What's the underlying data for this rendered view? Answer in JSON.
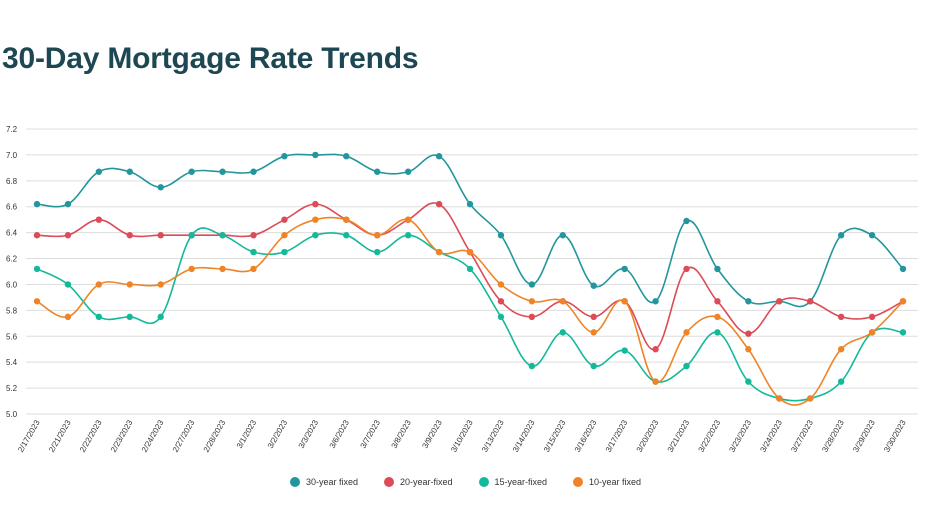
{
  "chart_data": {
    "type": "line",
    "title": "30-Day Mortgage Rate Trends",
    "xlabel": "",
    "ylabel": "",
    "ylim": [
      5.0,
      7.2
    ],
    "yticks": [
      "7.2",
      "7.0",
      "6.8",
      "6.6",
      "6.4",
      "6.2",
      "6.0",
      "5.8",
      "5.6",
      "5.4",
      "5.2",
      "5.0"
    ],
    "grid": true,
    "legend_position": "bottom",
    "categories": [
      "2/17/2023",
      "2/21/2023",
      "2/22/2023",
      "2/23/2023",
      "2/24/2023",
      "2/27/2023",
      "2/28/2023",
      "3/1/2023",
      "3/2/2023",
      "3/3/2023",
      "3/6/2023",
      "3/7/2023",
      "3/8/2023",
      "3/9/2023",
      "3/10/2023",
      "3/13/2023",
      "3/14/2023",
      "3/15/2023",
      "3/16/2023",
      "3/17/2023",
      "3/20/2023",
      "3/21/2023",
      "3/22/2023",
      "3/23/2023",
      "3/24/2023",
      "3/27/2023",
      "3/28/2023",
      "3/29/2023",
      "3/30/2023"
    ],
    "series": [
      {
        "name": "30-year fixed",
        "color": "#22969c",
        "values": [
          6.62,
          6.62,
          6.87,
          6.87,
          6.75,
          6.87,
          6.87,
          6.87,
          6.99,
          7.0,
          6.99,
          6.87,
          6.87,
          6.99,
          6.62,
          6.38,
          6.0,
          6.38,
          5.99,
          6.12,
          5.87,
          6.49,
          6.12,
          5.87,
          5.87,
          5.87,
          6.38,
          6.38,
          6.12
        ]
      },
      {
        "name": "20-year-fixed",
        "color": "#dc4b56",
        "values": [
          6.38,
          6.38,
          6.5,
          6.38,
          6.38,
          6.38,
          6.38,
          6.38,
          6.5,
          6.62,
          6.5,
          6.38,
          6.5,
          6.62,
          6.25,
          5.87,
          5.75,
          5.87,
          5.75,
          5.87,
          5.5,
          6.12,
          5.87,
          5.62,
          5.87,
          5.87,
          5.75,
          5.75,
          5.87
        ]
      },
      {
        "name": "15-year-fixed",
        "color": "#14b99a",
        "values": [
          6.12,
          6.0,
          5.75,
          5.75,
          5.75,
          6.38,
          6.38,
          6.25,
          6.25,
          6.38,
          6.38,
          6.25,
          6.38,
          6.25,
          6.12,
          5.75,
          5.37,
          5.63,
          5.37,
          5.49,
          5.25,
          5.37,
          5.63,
          5.25,
          5.12,
          5.12,
          5.25,
          5.63,
          5.63
        ]
      },
      {
        "name": "10-year fixed",
        "color": "#ee8427",
        "values": [
          5.87,
          5.75,
          6.0,
          6.0,
          6.0,
          6.12,
          6.12,
          6.12,
          6.38,
          6.5,
          6.5,
          6.38,
          6.5,
          6.25,
          6.25,
          6.0,
          5.87,
          5.87,
          5.63,
          5.87,
          5.25,
          5.63,
          5.75,
          5.5,
          5.12,
          5.12,
          5.5,
          5.63,
          5.87
        ]
      }
    ]
  }
}
